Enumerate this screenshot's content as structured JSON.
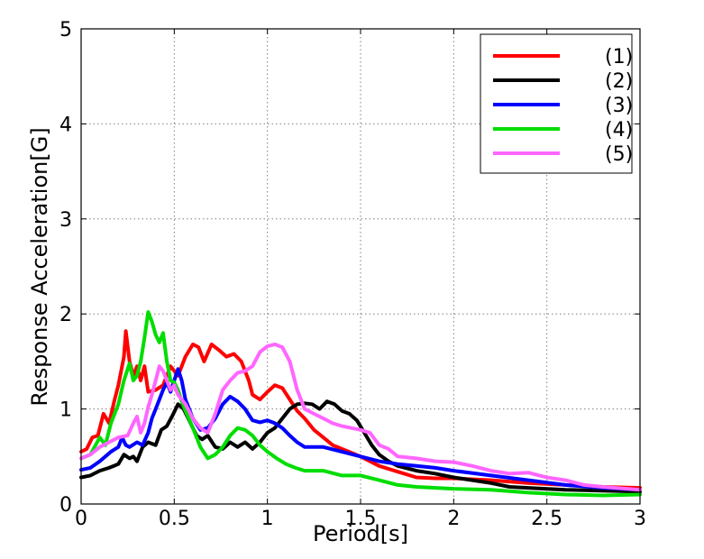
{
  "chart_data": {
    "type": "line",
    "title": "",
    "xlabel": "Period[s]",
    "ylabel": "Response Acceleration[G]",
    "xlim": [
      0,
      3
    ],
    "ylim": [
      0,
      5
    ],
    "x_ticks": [
      0,
      0.5,
      1,
      1.5,
      2,
      2.5,
      3
    ],
    "x_tick_labels": [
      "0",
      "0.5",
      "1",
      "1.5",
      "2",
      "2.5",
      "3"
    ],
    "y_ticks": [
      0,
      1,
      2,
      3,
      4,
      5
    ],
    "y_tick_labels": [
      "0",
      "1",
      "2",
      "3",
      "4",
      "5"
    ],
    "grid": true,
    "legend": "top-right",
    "series": [
      {
        "name": "(1)",
        "color": "#ff0000",
        "points": [
          [
            0,
            0.55
          ],
          [
            0.03,
            0.58
          ],
          [
            0.06,
            0.7
          ],
          [
            0.09,
            0.72
          ],
          [
            0.12,
            0.95
          ],
          [
            0.15,
            0.85
          ],
          [
            0.18,
            1.1
          ],
          [
            0.2,
            1.25
          ],
          [
            0.23,
            1.55
          ],
          [
            0.24,
            1.82
          ],
          [
            0.26,
            1.5
          ],
          [
            0.28,
            1.35
          ],
          [
            0.3,
            1.45
          ],
          [
            0.32,
            1.3
          ],
          [
            0.34,
            1.45
          ],
          [
            0.36,
            1.18
          ],
          [
            0.4,
            1.2
          ],
          [
            0.44,
            1.25
          ],
          [
            0.48,
            1.45
          ],
          [
            0.52,
            1.35
          ],
          [
            0.56,
            1.55
          ],
          [
            0.6,
            1.68
          ],
          [
            0.63,
            1.65
          ],
          [
            0.66,
            1.5
          ],
          [
            0.7,
            1.68
          ],
          [
            0.74,
            1.62
          ],
          [
            0.78,
            1.55
          ],
          [
            0.82,
            1.58
          ],
          [
            0.86,
            1.5
          ],
          [
            0.9,
            1.3
          ],
          [
            0.92,
            1.15
          ],
          [
            0.96,
            1.1
          ],
          [
            1.0,
            1.18
          ],
          [
            1.04,
            1.25
          ],
          [
            1.08,
            1.22
          ],
          [
            1.12,
            1.1
          ],
          [
            1.16,
            0.98
          ],
          [
            1.2,
            0.9
          ],
          [
            1.25,
            0.78
          ],
          [
            1.3,
            0.7
          ],
          [
            1.35,
            0.62
          ],
          [
            1.4,
            0.58
          ],
          [
            1.5,
            0.5
          ],
          [
            1.6,
            0.4
          ],
          [
            1.7,
            0.34
          ],
          [
            1.8,
            0.28
          ],
          [
            1.9,
            0.27
          ],
          [
            2.0,
            0.27
          ],
          [
            2.2,
            0.25
          ],
          [
            2.4,
            0.22
          ],
          [
            2.6,
            0.2
          ],
          [
            2.8,
            0.18
          ],
          [
            3.0,
            0.17
          ]
        ]
      },
      {
        "name": "(2)",
        "color": "#000000",
        "points": [
          [
            0,
            0.28
          ],
          [
            0.05,
            0.3
          ],
          [
            0.1,
            0.35
          ],
          [
            0.15,
            0.38
          ],
          [
            0.2,
            0.42
          ],
          [
            0.23,
            0.52
          ],
          [
            0.26,
            0.48
          ],
          [
            0.28,
            0.5
          ],
          [
            0.3,
            0.45
          ],
          [
            0.33,
            0.6
          ],
          [
            0.36,
            0.65
          ],
          [
            0.4,
            0.62
          ],
          [
            0.43,
            0.78
          ],
          [
            0.46,
            0.82
          ],
          [
            0.49,
            0.93
          ],
          [
            0.52,
            1.05
          ],
          [
            0.55,
            1.0
          ],
          [
            0.58,
            0.88
          ],
          [
            0.62,
            0.72
          ],
          [
            0.65,
            0.68
          ],
          [
            0.68,
            0.72
          ],
          [
            0.72,
            0.6
          ],
          [
            0.76,
            0.58
          ],
          [
            0.8,
            0.65
          ],
          [
            0.84,
            0.6
          ],
          [
            0.88,
            0.65
          ],
          [
            0.92,
            0.58
          ],
          [
            0.96,
            0.65
          ],
          [
            1.0,
            0.75
          ],
          [
            1.04,
            0.8
          ],
          [
            1.08,
            0.9
          ],
          [
            1.12,
            1.0
          ],
          [
            1.16,
            1.05
          ],
          [
            1.2,
            1.06
          ],
          [
            1.24,
            1.05
          ],
          [
            1.28,
            1.0
          ],
          [
            1.32,
            1.08
          ],
          [
            1.36,
            1.05
          ],
          [
            1.4,
            0.98
          ],
          [
            1.44,
            0.95
          ],
          [
            1.48,
            0.88
          ],
          [
            1.52,
            0.75
          ],
          [
            1.56,
            0.62
          ],
          [
            1.6,
            0.52
          ],
          [
            1.65,
            0.45
          ],
          [
            1.7,
            0.4
          ],
          [
            1.8,
            0.35
          ],
          [
            1.9,
            0.32
          ],
          [
            2.0,
            0.28
          ],
          [
            2.1,
            0.25
          ],
          [
            2.2,
            0.22
          ],
          [
            2.3,
            0.18
          ],
          [
            2.4,
            0.17
          ],
          [
            2.6,
            0.15
          ],
          [
            2.8,
            0.14
          ],
          [
            3.0,
            0.13
          ]
        ]
      },
      {
        "name": "(3)",
        "color": "#0000ff",
        "points": [
          [
            0,
            0.36
          ],
          [
            0.05,
            0.38
          ],
          [
            0.1,
            0.45
          ],
          [
            0.13,
            0.5
          ],
          [
            0.16,
            0.55
          ],
          [
            0.2,
            0.6
          ],
          [
            0.22,
            0.7
          ],
          [
            0.24,
            0.62
          ],
          [
            0.26,
            0.6
          ],
          [
            0.3,
            0.65
          ],
          [
            0.33,
            0.62
          ],
          [
            0.36,
            0.75
          ],
          [
            0.38,
            0.9
          ],
          [
            0.4,
            1.0
          ],
          [
            0.42,
            1.1
          ],
          [
            0.44,
            1.2
          ],
          [
            0.46,
            1.28
          ],
          [
            0.48,
            1.18
          ],
          [
            0.5,
            1.3
          ],
          [
            0.52,
            1.42
          ],
          [
            0.54,
            1.3
          ],
          [
            0.56,
            1.1
          ],
          [
            0.6,
            0.9
          ],
          [
            0.64,
            0.78
          ],
          [
            0.68,
            0.8
          ],
          [
            0.72,
            0.9
          ],
          [
            0.76,
            1.05
          ],
          [
            0.8,
            1.13
          ],
          [
            0.84,
            1.08
          ],
          [
            0.88,
            1.0
          ],
          [
            0.92,
            0.88
          ],
          [
            0.96,
            0.86
          ],
          [
            1.0,
            0.88
          ],
          [
            1.04,
            0.85
          ],
          [
            1.08,
            0.8
          ],
          [
            1.12,
            0.72
          ],
          [
            1.16,
            0.65
          ],
          [
            1.2,
            0.6
          ],
          [
            1.3,
            0.6
          ],
          [
            1.4,
            0.55
          ],
          [
            1.5,
            0.5
          ],
          [
            1.6,
            0.45
          ],
          [
            1.7,
            0.42
          ],
          [
            1.8,
            0.4
          ],
          [
            1.9,
            0.38
          ],
          [
            2.0,
            0.35
          ],
          [
            2.2,
            0.3
          ],
          [
            2.4,
            0.25
          ],
          [
            2.6,
            0.2
          ],
          [
            2.8,
            0.17
          ],
          [
            3.0,
            0.15
          ]
        ]
      },
      {
        "name": "(4)",
        "color": "#00dd00",
        "points": [
          [
            0,
            0.48
          ],
          [
            0.05,
            0.52
          ],
          [
            0.1,
            0.7
          ],
          [
            0.13,
            0.62
          ],
          [
            0.16,
            0.85
          ],
          [
            0.2,
            1.05
          ],
          [
            0.23,
            1.3
          ],
          [
            0.26,
            1.48
          ],
          [
            0.28,
            1.3
          ],
          [
            0.3,
            1.35
          ],
          [
            0.32,
            1.5
          ],
          [
            0.34,
            1.75
          ],
          [
            0.36,
            2.02
          ],
          [
            0.38,
            1.92
          ],
          [
            0.4,
            1.78
          ],
          [
            0.42,
            1.7
          ],
          [
            0.44,
            1.8
          ],
          [
            0.46,
            1.5
          ],
          [
            0.48,
            1.3
          ],
          [
            0.5,
            1.28
          ],
          [
            0.52,
            1.2
          ],
          [
            0.54,
            1.08
          ],
          [
            0.56,
            0.98
          ],
          [
            0.6,
            0.8
          ],
          [
            0.64,
            0.6
          ],
          [
            0.68,
            0.48
          ],
          [
            0.72,
            0.52
          ],
          [
            0.76,
            0.6
          ],
          [
            0.8,
            0.72
          ],
          [
            0.84,
            0.8
          ],
          [
            0.88,
            0.78
          ],
          [
            0.92,
            0.72
          ],
          [
            0.96,
            0.62
          ],
          [
            1.0,
            0.55
          ],
          [
            1.05,
            0.48
          ],
          [
            1.1,
            0.42
          ],
          [
            1.15,
            0.38
          ],
          [
            1.2,
            0.35
          ],
          [
            1.3,
            0.35
          ],
          [
            1.4,
            0.3
          ],
          [
            1.5,
            0.3
          ],
          [
            1.6,
            0.25
          ],
          [
            1.7,
            0.2
          ],
          [
            1.8,
            0.18
          ],
          [
            2.0,
            0.16
          ],
          [
            2.2,
            0.15
          ],
          [
            2.4,
            0.12
          ],
          [
            2.6,
            0.1
          ],
          [
            2.8,
            0.09
          ],
          [
            3.0,
            0.1
          ]
        ]
      },
      {
        "name": "(5)",
        "color": "#ff66ff",
        "points": [
          [
            0,
            0.48
          ],
          [
            0.05,
            0.52
          ],
          [
            0.1,
            0.6
          ],
          [
            0.15,
            0.65
          ],
          [
            0.2,
            0.7
          ],
          [
            0.25,
            0.72
          ],
          [
            0.28,
            0.85
          ],
          [
            0.3,
            0.92
          ],
          [
            0.32,
            0.75
          ],
          [
            0.34,
            0.85
          ],
          [
            0.36,
            1.02
          ],
          [
            0.38,
            1.15
          ],
          [
            0.4,
            1.3
          ],
          [
            0.42,
            1.45
          ],
          [
            0.44,
            1.4
          ],
          [
            0.46,
            1.3
          ],
          [
            0.48,
            1.2
          ],
          [
            0.5,
            1.25
          ],
          [
            0.52,
            1.15
          ],
          [
            0.56,
            1.05
          ],
          [
            0.6,
            0.9
          ],
          [
            0.64,
            0.8
          ],
          [
            0.68,
            0.75
          ],
          [
            0.72,
            0.95
          ],
          [
            0.76,
            1.2
          ],
          [
            0.8,
            1.3
          ],
          [
            0.84,
            1.38
          ],
          [
            0.88,
            1.4
          ],
          [
            0.92,
            1.45
          ],
          [
            0.96,
            1.6
          ],
          [
            1.0,
            1.66
          ],
          [
            1.04,
            1.68
          ],
          [
            1.08,
            1.65
          ],
          [
            1.12,
            1.5
          ],
          [
            1.16,
            1.2
          ],
          [
            1.2,
            1.0
          ],
          [
            1.25,
            0.95
          ],
          [
            1.3,
            0.9
          ],
          [
            1.35,
            0.85
          ],
          [
            1.4,
            0.82
          ],
          [
            1.45,
            0.8
          ],
          [
            1.5,
            0.78
          ],
          [
            1.55,
            0.75
          ],
          [
            1.6,
            0.62
          ],
          [
            1.65,
            0.58
          ],
          [
            1.7,
            0.5
          ],
          [
            1.8,
            0.48
          ],
          [
            1.9,
            0.45
          ],
          [
            2.0,
            0.44
          ],
          [
            2.1,
            0.4
          ],
          [
            2.2,
            0.35
          ],
          [
            2.3,
            0.32
          ],
          [
            2.4,
            0.33
          ],
          [
            2.5,
            0.28
          ],
          [
            2.6,
            0.25
          ],
          [
            2.7,
            0.2
          ],
          [
            2.8,
            0.18
          ],
          [
            3.0,
            0.15
          ]
        ]
      }
    ]
  }
}
